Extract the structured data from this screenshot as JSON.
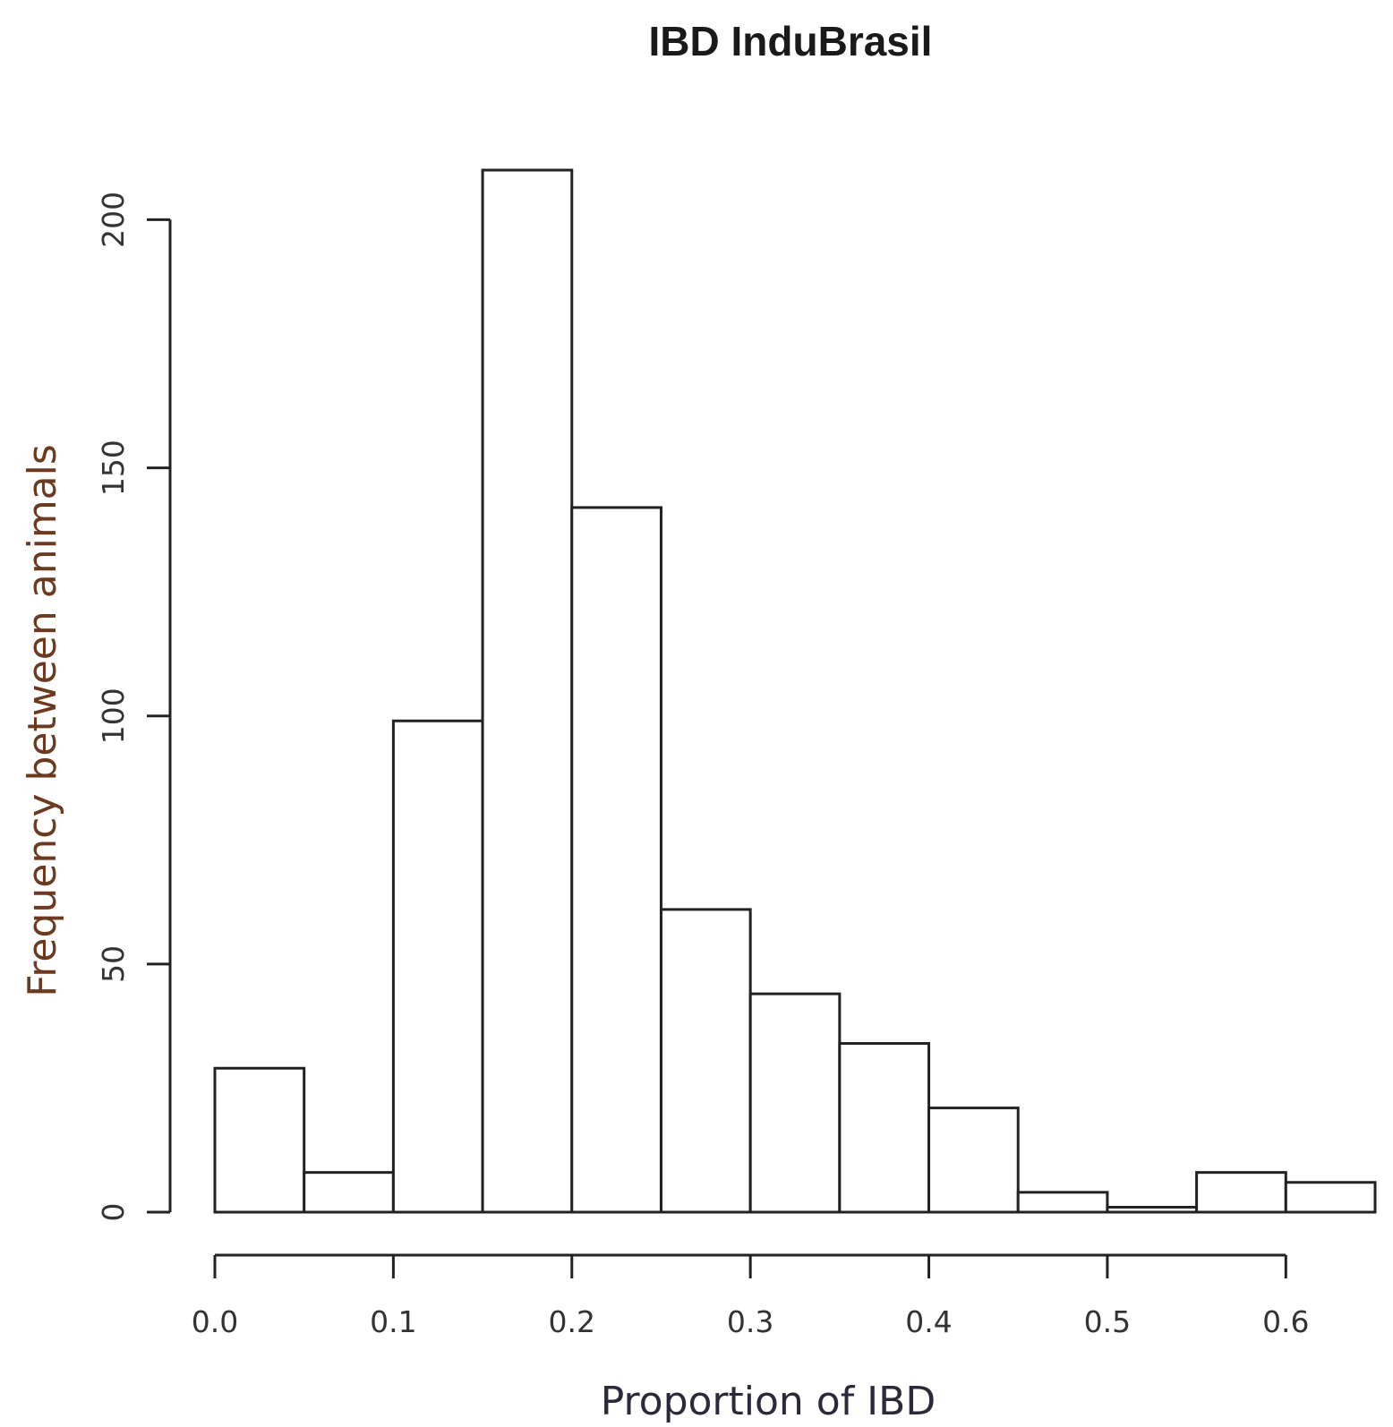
{
  "chart_data": {
    "type": "bar",
    "title": "IBD InduBrasil",
    "xlabel": "Proportion of IBD",
    "ylabel": "Frequency between animals",
    "bin_edges": [
      0.0,
      0.05,
      0.1,
      0.15,
      0.2,
      0.25,
      0.3,
      0.35,
      0.4,
      0.45,
      0.5,
      0.55,
      0.6,
      0.65
    ],
    "values": [
      29,
      8,
      99,
      210,
      142,
      61,
      44,
      34,
      21,
      4,
      1,
      8,
      6
    ],
    "xlim": [
      0.0,
      0.65
    ],
    "ylim": [
      0,
      210
    ],
    "x_ticks": [
      "0.0",
      "0.1",
      "0.2",
      "0.3",
      "0.4",
      "0.5",
      "0.6"
    ],
    "y_ticks": [
      "0",
      "50",
      "100",
      "150",
      "200"
    ],
    "grid": false,
    "colors": {
      "bar_fill": "#ffffff",
      "bar_edge": "#222222",
      "ylabel_color": "#6b3a1f",
      "xlabel_color": "#2a2a3a"
    }
  }
}
